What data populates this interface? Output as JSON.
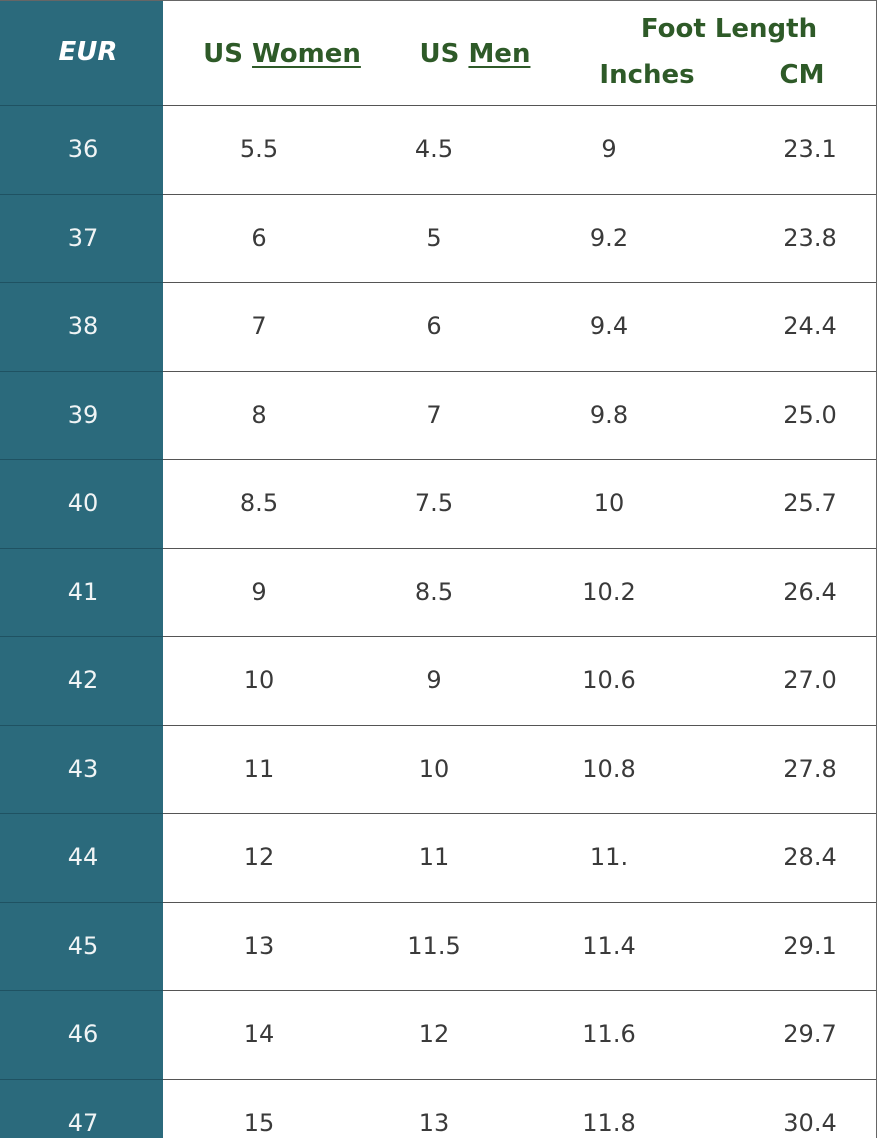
{
  "header": {
    "eur": "EUR",
    "us_women": [
      "US",
      "Women"
    ],
    "us_men": [
      "US",
      "Men"
    ],
    "foot_length": "Foot Length",
    "inches": "Inches",
    "cm": "CM"
  },
  "table": {
    "rows": [
      [
        "36",
        "5.5",
        "4.5",
        "9",
        "23.1"
      ],
      [
        "37",
        "6",
        "5",
        "9.2",
        "23.8"
      ],
      [
        "38",
        "7",
        "6",
        "9.4",
        "24.4"
      ],
      [
        "39",
        "8",
        "7",
        "9.8",
        "25.0"
      ],
      [
        "40",
        "8.5",
        "7.5",
        "10",
        "25.7"
      ],
      [
        "41",
        "9",
        "8.5",
        "10.2",
        "26.4"
      ],
      [
        "42",
        "10",
        "9",
        "10.6",
        "27.0"
      ],
      [
        "43",
        "11",
        "10",
        "10.8",
        "27.8"
      ],
      [
        "44",
        "12",
        "11",
        "11.",
        "28.4"
      ],
      [
        "45",
        "13",
        "11.5",
        "11.4",
        "29.1"
      ],
      [
        "46",
        "14",
        "12",
        "11.6",
        "29.7"
      ],
      [
        "47",
        "15",
        "13",
        "11.8",
        "30.4"
      ]
    ]
  }
}
